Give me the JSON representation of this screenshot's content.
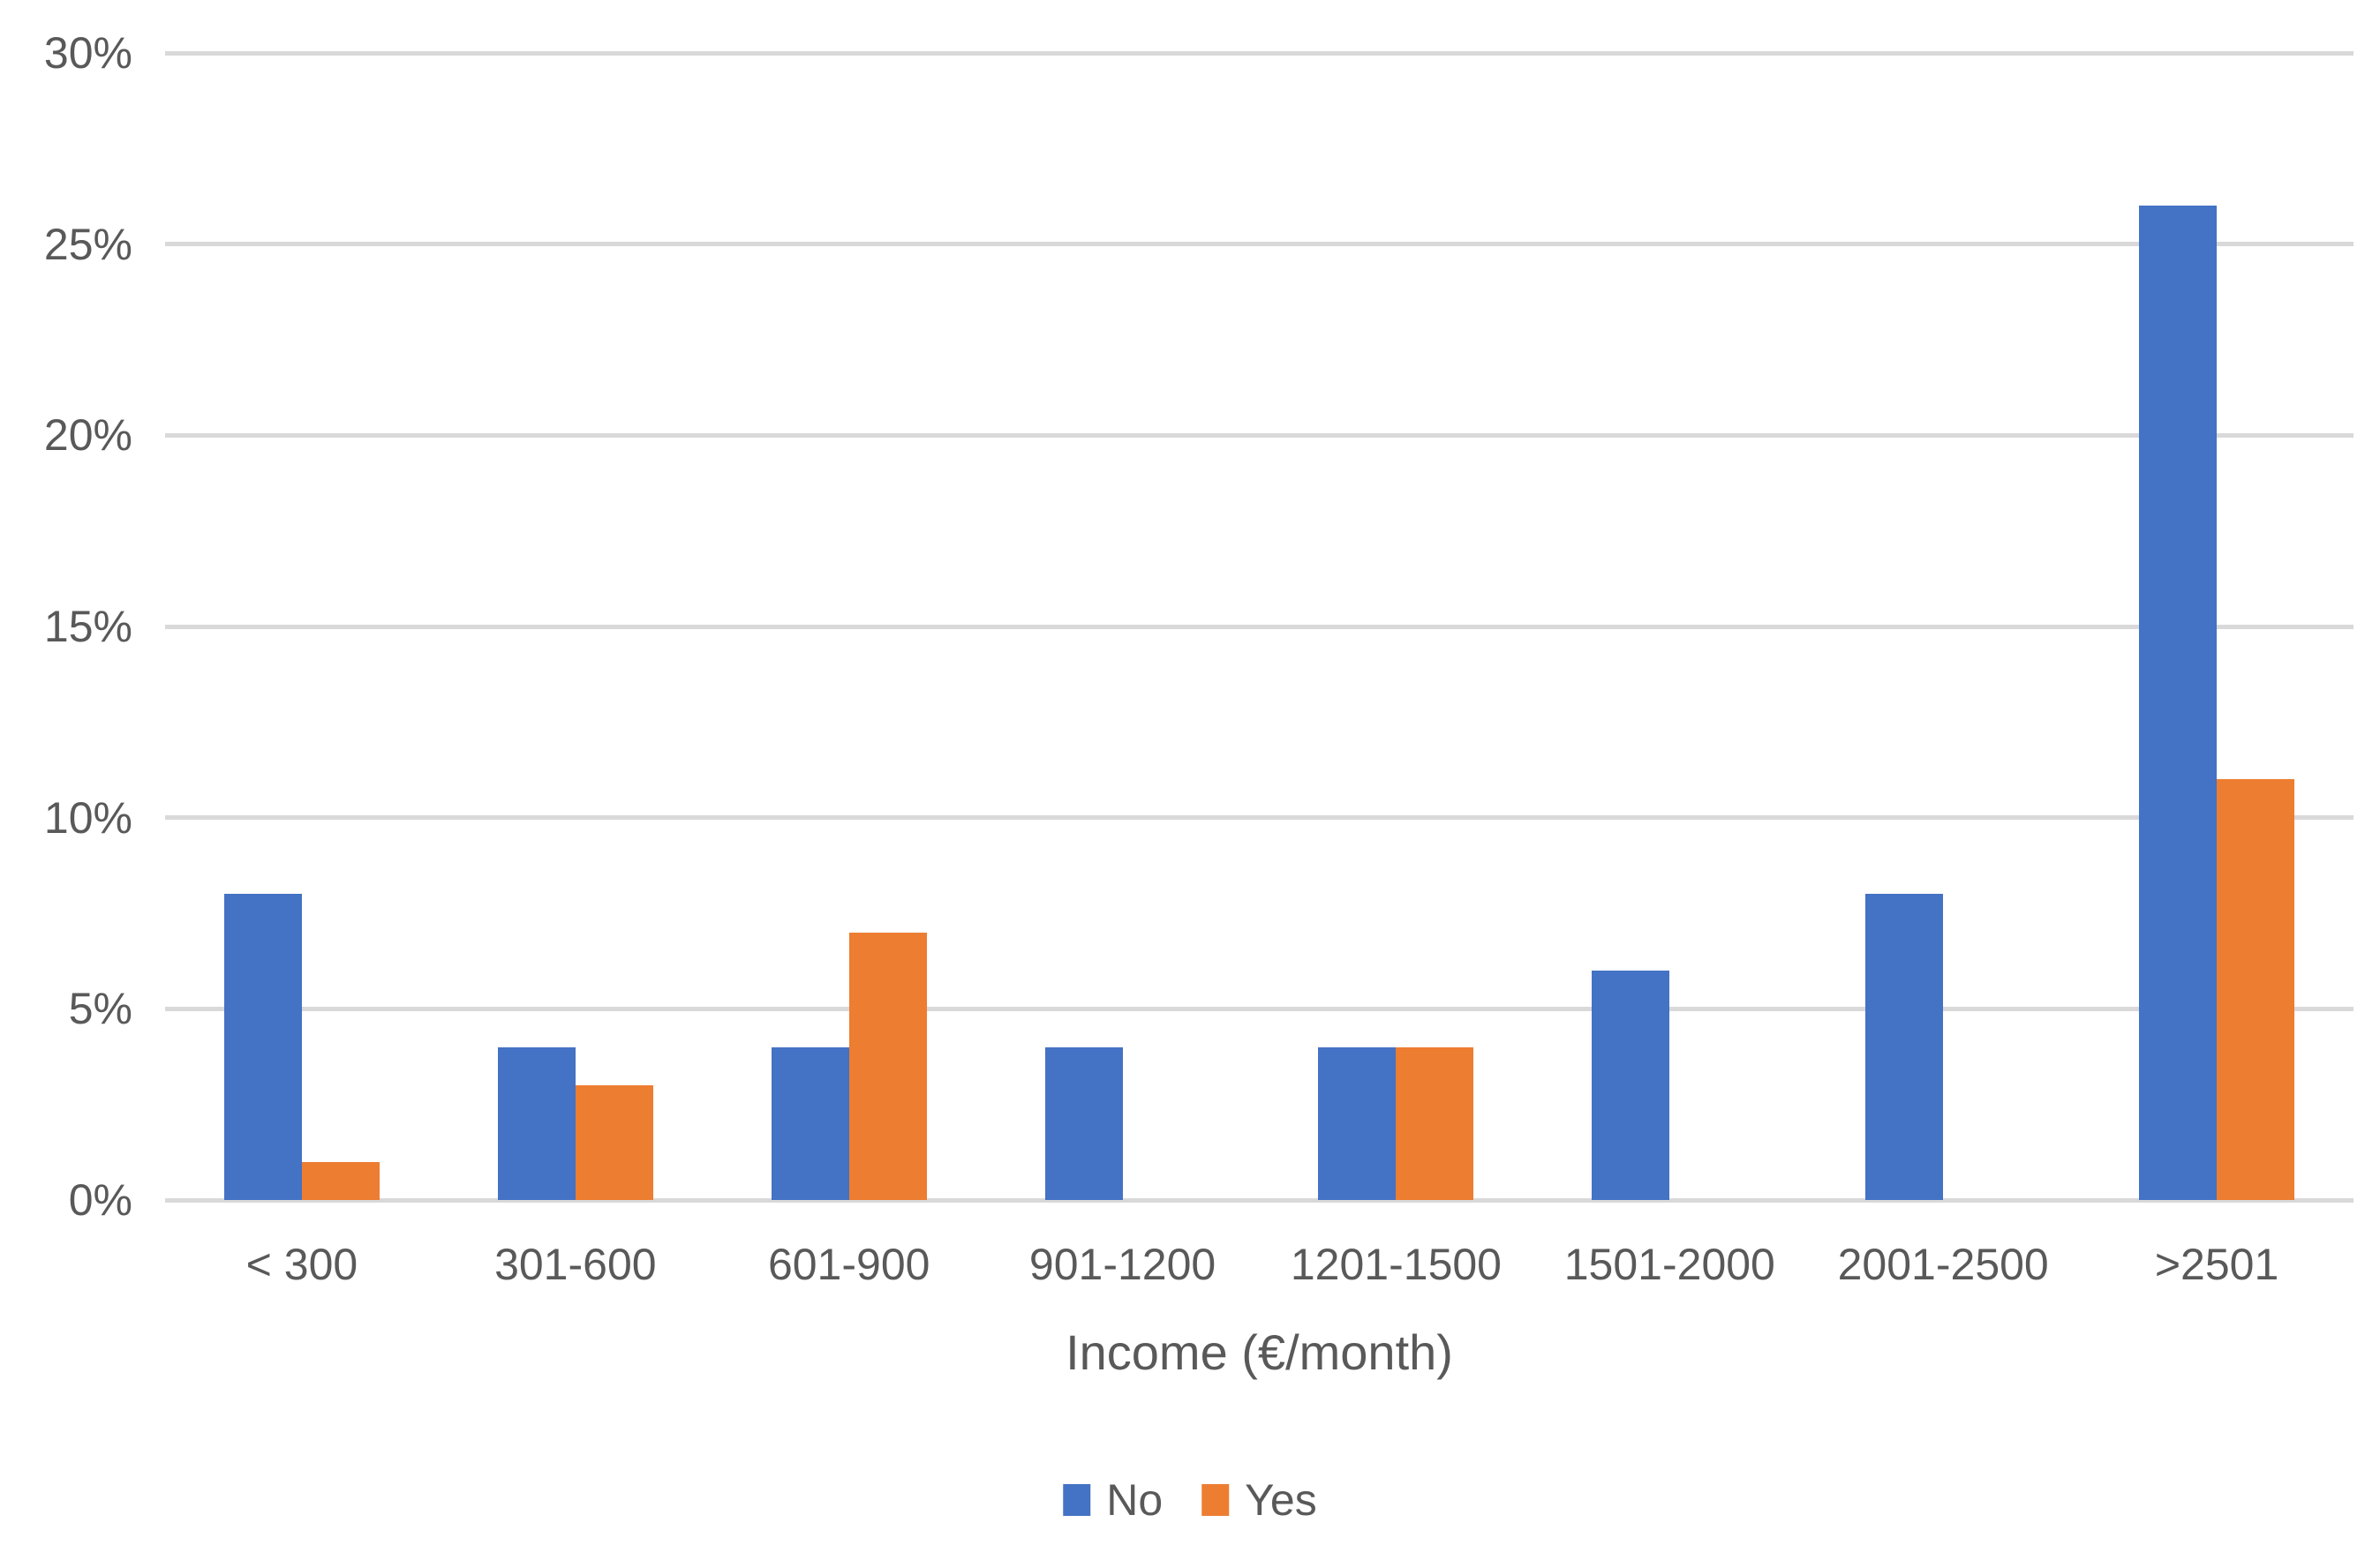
{
  "chart_data": {
    "type": "bar",
    "title": "",
    "xlabel": "Income (€/month)",
    "ylabel": "",
    "categories": [
      "< 300",
      "301-600",
      "601-900",
      "901-1200",
      "1201-1500",
      "1501-2000",
      "2001-2500",
      ">2501"
    ],
    "series": [
      {
        "name": "No",
        "color": "#4472C4",
        "values": [
          8,
          4,
          4,
          4,
          4,
          6,
          8,
          26
        ]
      },
      {
        "name": "Yes",
        "color": "#ED7D31",
        "values": [
          1,
          3,
          7,
          0,
          4,
          0,
          0,
          11
        ]
      }
    ],
    "ylim": [
      0,
      30
    ],
    "ytick_step": 5,
    "ytick_labels": [
      "0%",
      "5%",
      "10%",
      "15%",
      "20%",
      "25%",
      "30%"
    ],
    "grid": "horizontal-only",
    "legend_position": "bottom-center",
    "gridline_color": "#D9D9D9",
    "text_color": "#595959",
    "plot_background": "#FFFFFF"
  }
}
